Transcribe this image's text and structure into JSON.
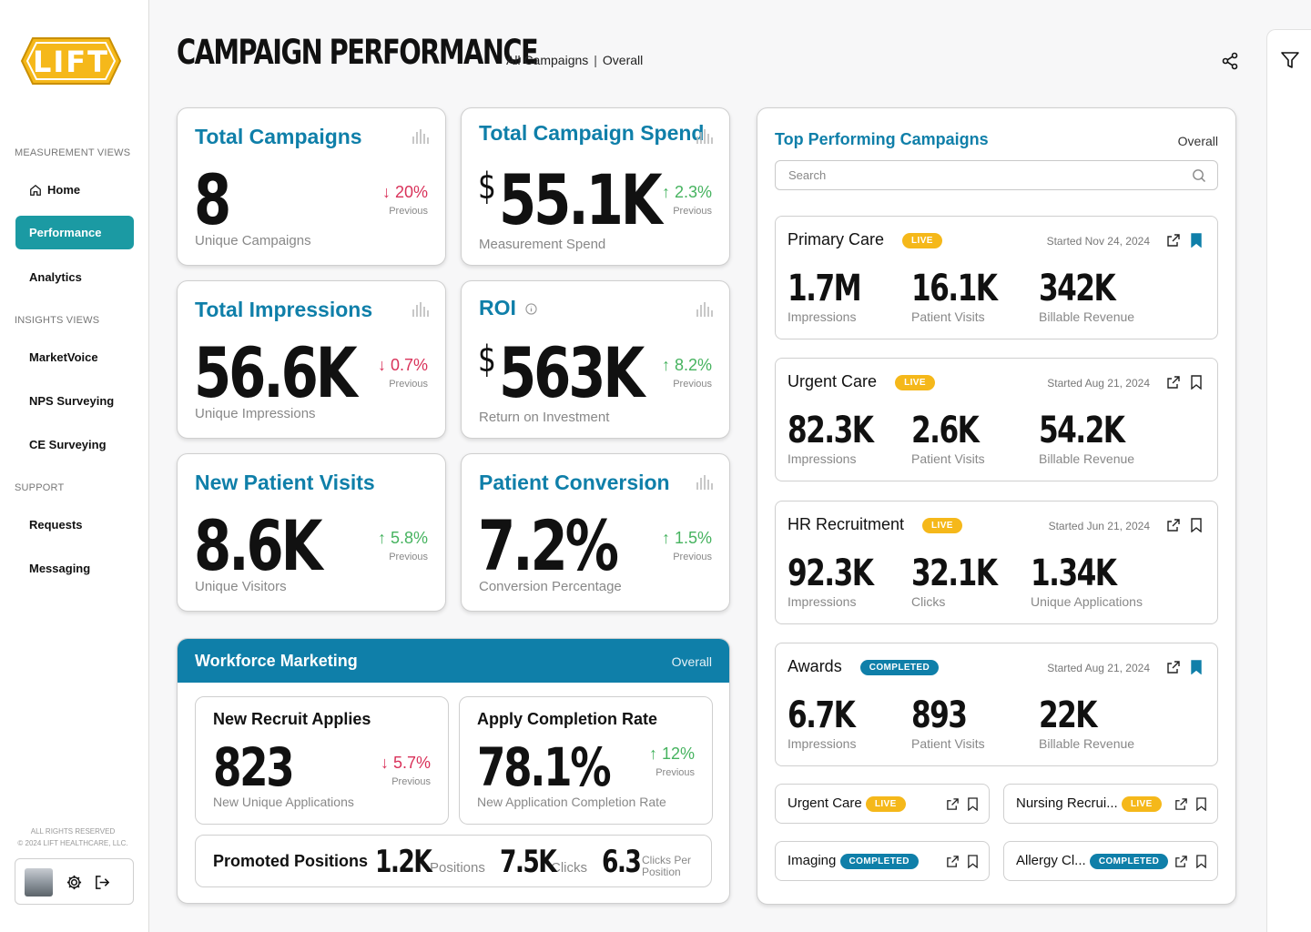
{
  "brand": {
    "logo_text": "LIFT",
    "accent": "#0f7fa9",
    "teal": "#1b9aa3",
    "live_color": "#f5b81a",
    "down_color": "#d9325a",
    "up_color": "#46b35f"
  },
  "sidebar": {
    "sections": [
      {
        "label": "MEASUREMENT VIEWS"
      },
      {
        "label": "INSIGHTS VIEWS"
      },
      {
        "label": "SUPPORT"
      }
    ],
    "items": {
      "home": "Home",
      "performance": "Performance",
      "analytics": "Analytics",
      "marketvoice": "MarketVoice",
      "nps": "NPS Surveying",
      "ce": "CE Surveying",
      "requests": "Requests",
      "messaging": "Messaging"
    },
    "rights_line1": "ALL RIGHTS RESERVED",
    "rights_line2": "© 2024 LIFT HEALTHCARE, LLC."
  },
  "header": {
    "title": "CAMPAIGN PERFORMANCE",
    "crumb1": "All Campaigns",
    "crumb_sep": "|",
    "crumb2": "Overall"
  },
  "kpis": {
    "total_campaigns": {
      "title": "Total Campaigns",
      "value": "8",
      "sub": "Unique Campaigns",
      "delta": "↓ 20%",
      "prev": "Previous"
    },
    "total_spend": {
      "title": "Total Campaign Spend",
      "currency": "$",
      "value": "55.1K",
      "sub": "Measurement Spend",
      "delta": "↑ 2.3%",
      "prev": "Previous"
    },
    "impressions": {
      "title": "Total Impressions",
      "value": "56.6K",
      "sub": "Unique Impressions",
      "delta": "↓ 0.7%",
      "prev": "Previous"
    },
    "roi": {
      "title": "ROI",
      "currency": "$",
      "value": "563K",
      "sub": "Return on Investment",
      "delta": "↑ 8.2%",
      "prev": "Previous"
    },
    "visits": {
      "title": "New Patient Visits",
      "value": "8.6K",
      "sub": "Unique Visitors",
      "delta": "↑ 5.8%",
      "prev": "Previous"
    },
    "conversion": {
      "title": "Patient Conversion",
      "value": "7.2%",
      "sub": "Conversion Percentage",
      "delta": "↑ 1.5%",
      "prev": "Previous"
    }
  },
  "workforce": {
    "title": "Workforce Marketing",
    "overall": "Overall",
    "applies": {
      "title": "New Recruit Applies",
      "value": "823",
      "sub": "New Unique Applications",
      "delta": "↓ 5.7%",
      "prev": "Previous"
    },
    "completion": {
      "title": "Apply Completion Rate",
      "value": "78.1%",
      "sub": "New Application Completion Rate",
      "delta": "↑ 12%",
      "prev": "Previous"
    },
    "promoted": {
      "label": "Promoted Positions",
      "positions_value": "1.2K",
      "positions_label": "Positions",
      "clicks_value": "7.5K",
      "clicks_label": "Clicks",
      "cpp_value": "6.3",
      "cpp_label1": "Clicks Per",
      "cpp_label2": "Position"
    }
  },
  "top_campaigns": {
    "title": "Top Performing Campaigns",
    "overall": "Overall",
    "search_placeholder": "Search",
    "items": [
      {
        "name": "Primary Care",
        "status": "LIVE",
        "date": "Started Nov 24, 2024",
        "bookmarked": true,
        "metrics": [
          {
            "v": "1.7M",
            "l": "Impressions"
          },
          {
            "v": "16.1K",
            "l": "Patient Visits"
          },
          {
            "v": "342K",
            "l": "Billable Revenue"
          }
        ]
      },
      {
        "name": "Urgent Care",
        "status": "LIVE",
        "date": "Started Aug 21, 2024",
        "bookmarked": false,
        "metrics": [
          {
            "v": "82.3K",
            "l": "Impressions"
          },
          {
            "v": "2.6K",
            "l": "Patient Visits"
          },
          {
            "v": "54.2K",
            "l": "Billable Revenue"
          }
        ]
      },
      {
        "name": "HR Recruitment",
        "status": "LIVE",
        "date": "Started Jun 21, 2024",
        "bookmarked": false,
        "metrics": [
          {
            "v": "92.3K",
            "l": "Impressions"
          },
          {
            "v": "32.1K",
            "l": "Clicks"
          },
          {
            "v": "1.34K",
            "l": "Unique Applications"
          }
        ]
      },
      {
        "name": "Awards",
        "status": "COMPLETED",
        "date": "Started Aug 21, 2024",
        "bookmarked": true,
        "metrics": [
          {
            "v": "6.7K",
            "l": "Impressions"
          },
          {
            "v": "893",
            "l": "Patient Visits"
          },
          {
            "v": "22K",
            "l": "Billable Revenue"
          }
        ]
      }
    ],
    "mini": [
      {
        "name": "Urgent Care",
        "status": "LIVE"
      },
      {
        "name": "Nursing Recrui...",
        "status": "LIVE"
      },
      {
        "name": "Imaging",
        "status": "COMPLETED"
      },
      {
        "name": "Allergy Cl...",
        "status": "COMPLETED"
      }
    ]
  }
}
